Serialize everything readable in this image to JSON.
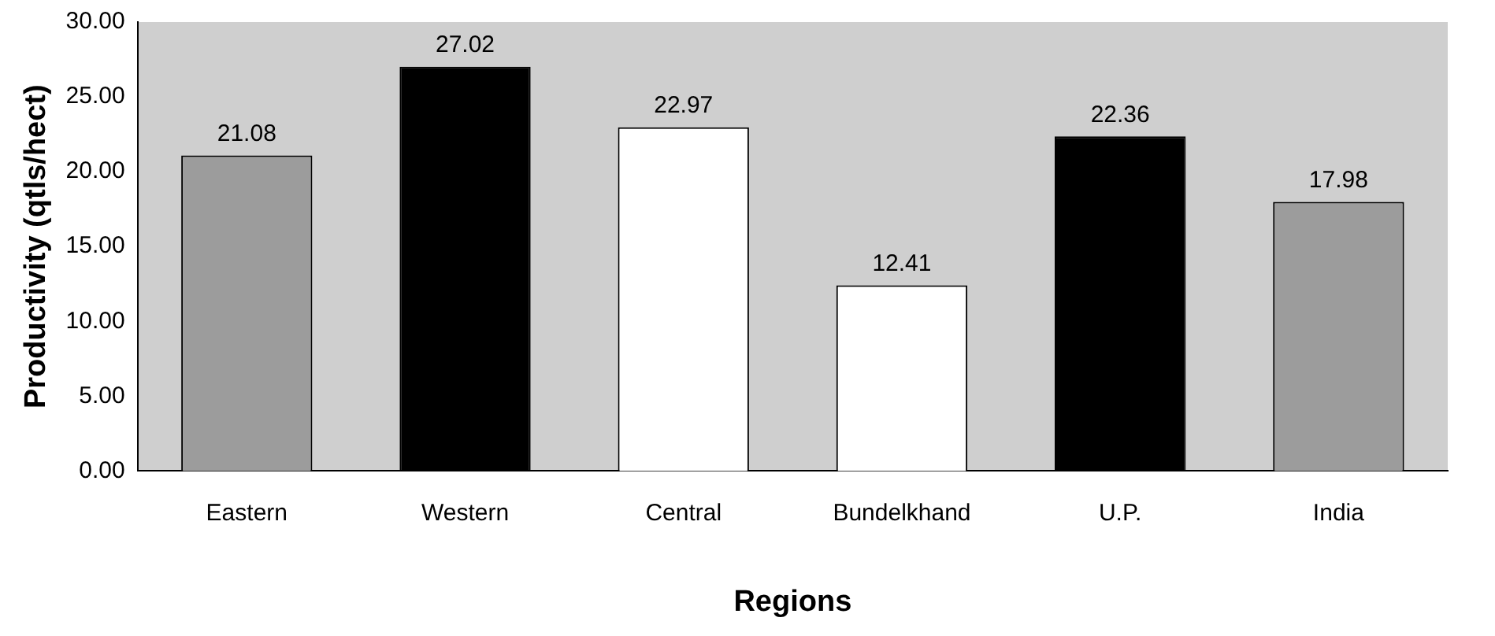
{
  "chart_data": {
    "type": "bar",
    "xlabel": "Regions",
    "ylabel": "Productivity (qtls/hect)",
    "categories": [
      "Eastern",
      "Western",
      "Central",
      "Bundelkhand",
      "U.P.",
      "India"
    ],
    "values": [
      21.08,
      27.02,
      22.97,
      12.41,
      22.36,
      17.98
    ],
    "colors": [
      "#9c9c9c",
      "#000000",
      "#ffffff",
      "#ffffff",
      "#000000",
      "#9c9c9c"
    ],
    "ylim": [
      0,
      30
    ],
    "yticks": [
      {
        "value": 0,
        "label": "0.00"
      },
      {
        "value": 5,
        "label": "5.00"
      },
      {
        "value": 10,
        "label": "10.00"
      },
      {
        "value": 15,
        "label": "15.00"
      },
      {
        "value": 20,
        "label": "20.00"
      },
      {
        "value": 25,
        "label": "25.00"
      },
      {
        "value": 30,
        "label": "30.00"
      }
    ],
    "grid": false,
    "legend": false,
    "data_labels": true
  }
}
